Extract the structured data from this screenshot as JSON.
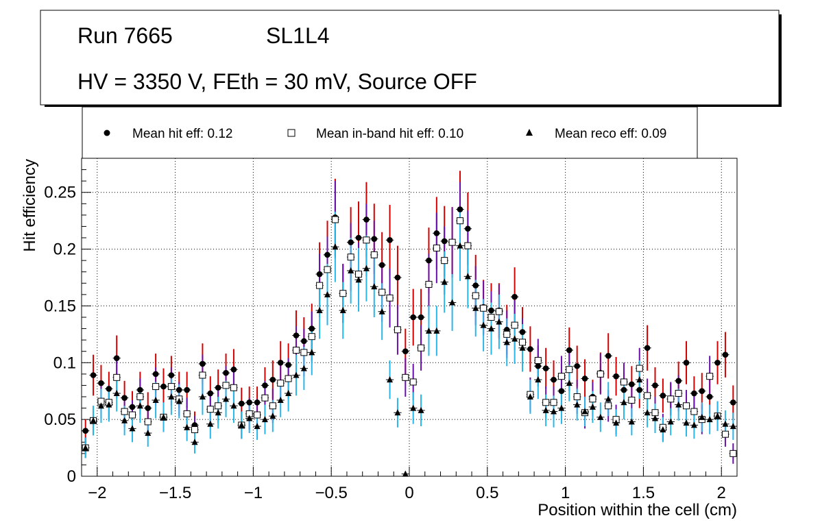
{
  "chart_data": {
    "type": "scatter",
    "header": {
      "run": "Run 7665",
      "layer": "SL1L4",
      "conditions": "HV = 3350 V, FEth = 30 mV, Source OFF"
    },
    "xlabel": "Position within the cell (cm)",
    "ylabel": "Hit efficiency",
    "xlim": [
      -2.1,
      2.1
    ],
    "ylim": [
      0,
      0.28
    ],
    "grid": true,
    "legend_position": "top",
    "x_ticks": [
      {
        "v": -2,
        "label": "−2"
      },
      {
        "v": -1.5,
        "label": "−1.5"
      },
      {
        "v": -1,
        "label": "−1"
      },
      {
        "v": -0.5,
        "label": "−0.5"
      },
      {
        "v": 0,
        "label": "0"
      },
      {
        "v": 0.5,
        "label": "0.5"
      },
      {
        "v": 1,
        "label": "1"
      },
      {
        "v": 1.5,
        "label": "1.5"
      },
      {
        "v": 2,
        "label": "2"
      }
    ],
    "y_ticks": [
      {
        "v": 0,
        "label": "0"
      },
      {
        "v": 0.05,
        "label": "0.05"
      },
      {
        "v": 0.1,
        "label": "0.1"
      },
      {
        "v": 0.15,
        "label": "0.15"
      },
      {
        "v": 0.2,
        "label": "0.2"
      },
      {
        "v": 0.25,
        "label": "0.25"
      }
    ],
    "x": [
      -2.075,
      -2.025,
      -1.975,
      -1.925,
      -1.875,
      -1.825,
      -1.775,
      -1.725,
      -1.675,
      -1.625,
      -1.575,
      -1.525,
      -1.475,
      -1.425,
      -1.375,
      -1.325,
      -1.275,
      -1.225,
      -1.175,
      -1.125,
      -1.075,
      -1.025,
      -0.975,
      -0.925,
      -0.875,
      -0.825,
      -0.775,
      -0.725,
      -0.675,
      -0.625,
      -0.575,
      -0.525,
      -0.475,
      -0.425,
      -0.375,
      -0.325,
      -0.275,
      -0.225,
      -0.175,
      -0.125,
      -0.075,
      -0.025,
      0.025,
      0.075,
      0.125,
      0.175,
      0.225,
      0.275,
      0.325,
      0.375,
      0.425,
      0.475,
      0.525,
      0.575,
      0.625,
      0.675,
      0.725,
      0.775,
      0.825,
      0.875,
      0.925,
      0.975,
      1.025,
      1.075,
      1.125,
      1.175,
      1.225,
      1.275,
      1.325,
      1.375,
      1.425,
      1.475,
      1.525,
      1.575,
      1.625,
      1.675,
      1.725,
      1.775,
      1.825,
      1.875,
      1.925,
      1.975,
      2.025,
      2.075
    ],
    "series": [
      {
        "name": "Mean hit  eff: 0.12",
        "marker": "circle",
        "color": "#000000",
        "error_color": "#d40000",
        "values": [
          0.04,
          0.089,
          0.082,
          0.077,
          0.104,
          0.069,
          0.061,
          0.076,
          0.06,
          0.09,
          0.079,
          0.089,
          0.076,
          0.076,
          0.045,
          0.099,
          0.073,
          0.078,
          0.091,
          0.094,
          0.064,
          0.065,
          0.065,
          0.08,
          0.085,
          0.1,
          0.098,
          0.124,
          0.119,
          0.13,
          0.178,
          0.195,
          0.228,
          0.161,
          0.206,
          0.21,
          0.226,
          0.209,
          0.186,
          0.208,
          0.175,
          0.11,
          0.14,
          0.14,
          0.19,
          0.214,
          0.207,
          0.206,
          0.235,
          0.218,
          0.168,
          0.149,
          0.146,
          0.146,
          0.129,
          0.158,
          0.127,
          0.112,
          0.097,
          0.095,
          0.085,
          0.075,
          0.111,
          0.097,
          0.086,
          0.07,
          0.091,
          0.106,
          0.088,
          0.076,
          0.081,
          0.076,
          0.113,
          0.08,
          0.071,
          0.068,
          0.084,
          0.1,
          0.073,
          0.075,
          0.07,
          0.1,
          0.107,
          0.065
        ],
        "err": [
          0.01,
          0.018,
          0.016,
          0.015,
          0.02,
          0.015,
          0.014,
          0.016,
          0.014,
          0.018,
          0.016,
          0.017,
          0.016,
          0.016,
          0.012,
          0.018,
          0.015,
          0.016,
          0.017,
          0.018,
          0.014,
          0.014,
          0.014,
          0.016,
          0.017,
          0.019,
          0.019,
          0.022,
          0.021,
          0.022,
          0.028,
          0.03,
          0.034,
          0.026,
          0.031,
          0.032,
          0.033,
          0.031,
          0.029,
          0.031,
          0.028,
          0.02,
          0.025,
          0.025,
          0.029,
          0.032,
          0.031,
          0.031,
          0.034,
          0.032,
          0.027,
          0.024,
          0.024,
          0.024,
          0.022,
          0.026,
          0.022,
          0.02,
          0.018,
          0.018,
          0.017,
          0.016,
          0.02,
          0.018,
          0.017,
          0.015,
          0.018,
          0.02,
          0.017,
          0.016,
          0.016,
          0.016,
          0.02,
          0.016,
          0.015,
          0.014,
          0.017,
          0.019,
          0.015,
          0.016,
          0.015,
          0.019,
          0.02,
          0.015
        ]
      },
      {
        "name": "Mean in-band hit eff: 0.10",
        "marker": "open-square",
        "color": "#000000",
        "error_color": "#6a0dad",
        "values": [
          0.025,
          0.049,
          0.066,
          0.065,
          0.087,
          0.057,
          0.054,
          0.07,
          0.048,
          0.079,
          0.052,
          0.079,
          0.068,
          0.055,
          0.041,
          0.089,
          0.059,
          0.062,
          0.08,
          0.078,
          0.045,
          0.055,
          0.054,
          0.069,
          0.062,
          0.082,
          0.086,
          0.111,
          0.109,
          0.123,
          0.168,
          0.182,
          0.226,
          0.161,
          0.193,
          0.178,
          0.208,
          0.195,
          0.162,
          0.157,
          0.129,
          0.087,
          0.083,
          0.113,
          0.169,
          0.201,
          0.19,
          0.206,
          0.225,
          0.203,
          0.159,
          0.148,
          0.14,
          0.145,
          0.125,
          0.133,
          0.118,
          0.072,
          0.102,
          0.065,
          0.065,
          0.088,
          0.094,
          0.07,
          0.056,
          0.068,
          0.09,
          0.062,
          0.05,
          0.083,
          0.067,
          0.095,
          0.071,
          0.056,
          0.043,
          0.068,
          0.073,
          0.062,
          0.057,
          0.05,
          0.088,
          0.053,
          0.037,
          0.02
        ],
        "err": [
          0.009,
          0.013,
          0.015,
          0.015,
          0.018,
          0.014,
          0.013,
          0.016,
          0.013,
          0.017,
          0.013,
          0.017,
          0.015,
          0.014,
          0.012,
          0.018,
          0.014,
          0.015,
          0.017,
          0.017,
          0.012,
          0.014,
          0.014,
          0.015,
          0.015,
          0.017,
          0.018,
          0.021,
          0.021,
          0.022,
          0.028,
          0.029,
          0.034,
          0.026,
          0.03,
          0.028,
          0.032,
          0.03,
          0.026,
          0.026,
          0.022,
          0.017,
          0.016,
          0.02,
          0.027,
          0.031,
          0.03,
          0.031,
          0.034,
          0.031,
          0.026,
          0.024,
          0.023,
          0.024,
          0.021,
          0.022,
          0.021,
          0.015,
          0.019,
          0.014,
          0.014,
          0.018,
          0.019,
          0.015,
          0.014,
          0.015,
          0.018,
          0.014,
          0.013,
          0.017,
          0.015,
          0.018,
          0.015,
          0.014,
          0.012,
          0.015,
          0.016,
          0.014,
          0.014,
          0.013,
          0.018,
          0.013,
          0.011,
          0.009
        ]
      },
      {
        "name": "Mean reco eff: 0.09",
        "marker": "triangle",
        "color": "#000000",
        "error_color": "#29b6e8",
        "values": [
          0.025,
          0.049,
          0.062,
          0.063,
          0.073,
          0.049,
          0.042,
          0.062,
          0.038,
          0.067,
          0.052,
          0.07,
          0.066,
          0.043,
          0.03,
          0.07,
          0.046,
          0.056,
          0.068,
          0.062,
          0.045,
          0.051,
          0.044,
          0.05,
          0.053,
          0.067,
          0.073,
          0.089,
          0.095,
          0.109,
          0.146,
          0.16,
          0.202,
          0.146,
          0.181,
          0.173,
          0.183,
          0.167,
          0.145,
          0.085,
          0.056,
          0.002,
          0.06,
          0.058,
          0.128,
          0.128,
          0.171,
          0.153,
          0.203,
          0.176,
          0.148,
          0.133,
          0.13,
          0.136,
          0.118,
          0.121,
          0.113,
          0.07,
          0.085,
          0.058,
          0.057,
          0.06,
          0.082,
          0.063,
          0.057,
          0.061,
          0.052,
          0.068,
          0.047,
          0.065,
          0.048,
          0.085,
          0.056,
          0.051,
          0.041,
          0.048,
          0.063,
          0.047,
          0.045,
          0.052,
          0.05,
          0.053,
          0.046,
          0.044
        ],
        "err": [
          0.009,
          0.013,
          0.015,
          0.015,
          0.016,
          0.013,
          0.012,
          0.015,
          0.012,
          0.016,
          0.013,
          0.016,
          0.015,
          0.012,
          0.01,
          0.016,
          0.013,
          0.014,
          0.016,
          0.015,
          0.012,
          0.013,
          0.012,
          0.013,
          0.014,
          0.015,
          0.016,
          0.018,
          0.019,
          0.02,
          0.025,
          0.027,
          0.031,
          0.025,
          0.029,
          0.028,
          0.029,
          0.027,
          0.025,
          0.017,
          0.013,
          0.002,
          0.014,
          0.014,
          0.022,
          0.022,
          0.027,
          0.025,
          0.031,
          0.028,
          0.025,
          0.023,
          0.023,
          0.024,
          0.021,
          0.022,
          0.021,
          0.015,
          0.017,
          0.014,
          0.014,
          0.014,
          0.016,
          0.014,
          0.013,
          0.014,
          0.013,
          0.015,
          0.012,
          0.015,
          0.012,
          0.017,
          0.013,
          0.013,
          0.011,
          0.012,
          0.014,
          0.012,
          0.012,
          0.013,
          0.013,
          0.013,
          0.012,
          0.012
        ]
      }
    ]
  }
}
